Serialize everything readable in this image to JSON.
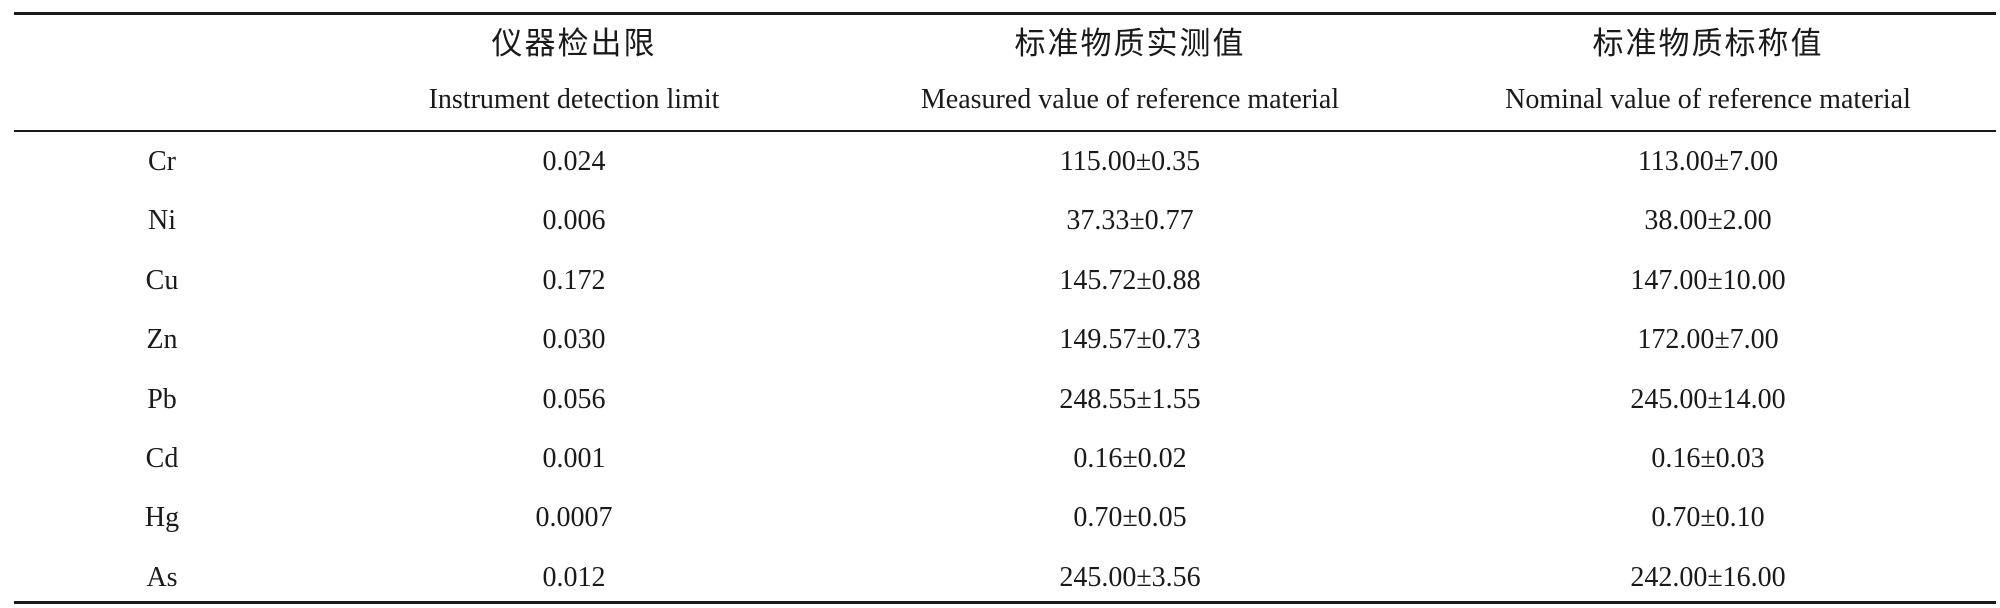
{
  "table": {
    "header": {
      "cn": [
        "",
        "仪器检出限",
        "标准物质实测值",
        "标准物质标称值"
      ],
      "en": [
        "",
        "Instrument detection limit",
        "Measured value of reference material",
        "Nominal value of reference material"
      ]
    },
    "rows": [
      [
        "Cr",
        "0.024",
        "115.00±0.35",
        "113.00±7.00"
      ],
      [
        "Ni",
        "0.006",
        "37.33±0.77",
        "38.00±2.00"
      ],
      [
        "Cu",
        "0.172",
        "145.72±0.88",
        "147.00±10.00"
      ],
      [
        "Zn",
        "0.030",
        "149.57±0.73",
        "172.00±7.00"
      ],
      [
        "Pb",
        "0.056",
        "248.55±1.55",
        "245.00±14.00"
      ],
      [
        "Cd",
        "0.001",
        "0.16±0.02",
        "0.16±0.03"
      ],
      [
        "Hg",
        "0.0007",
        "0.70±0.05",
        "0.70±0.10"
      ],
      [
        "As",
        "0.012",
        "245.00±3.56",
        "242.00±16.00"
      ]
    ]
  }
}
